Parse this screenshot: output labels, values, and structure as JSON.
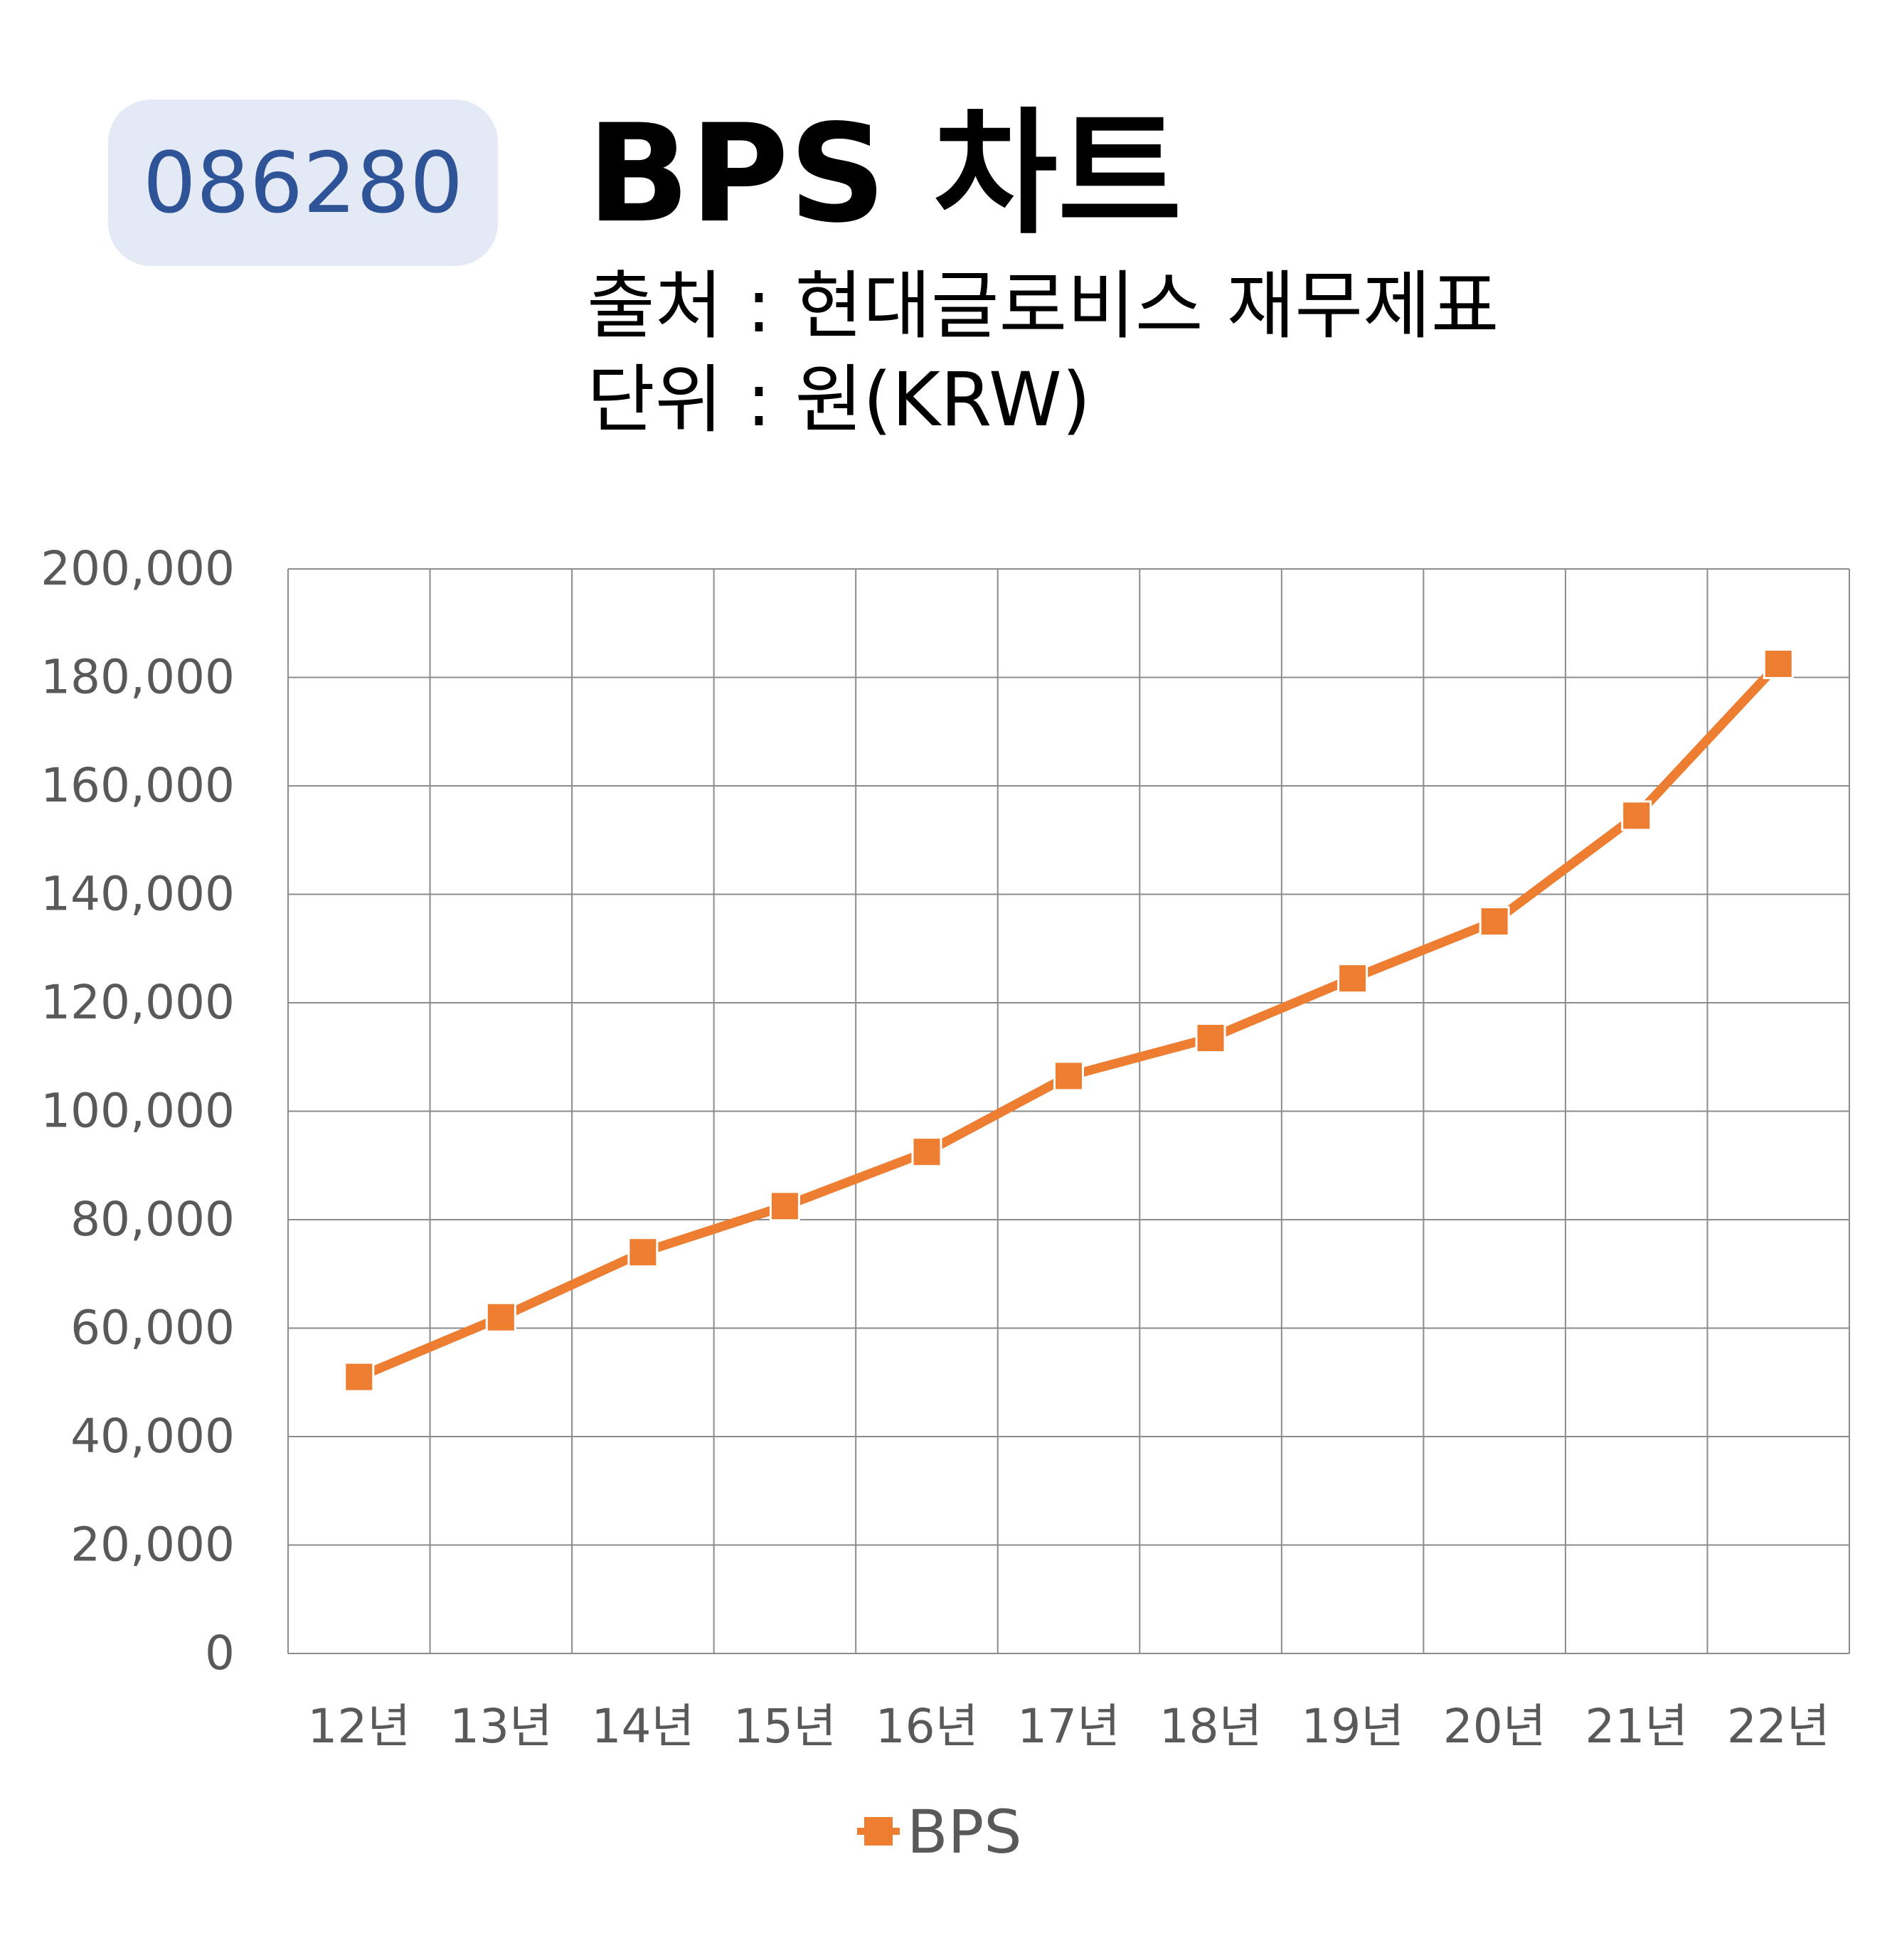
{
  "badge": {
    "code": "086280"
  },
  "header": {
    "title": "BPS 차트",
    "source_line": "출처 : 현대글로비스 재무제표",
    "unit_line": "단위 : 원(KRW)"
  },
  "colors": {
    "series": "#ed7d31",
    "badge_bg": "#e3e9f5",
    "badge_text": "#2e5396",
    "grid": "#8c8c8c"
  },
  "chart_data": {
    "type": "line",
    "categories": [
      "12년",
      "13년",
      "14년",
      "15년",
      "16년",
      "17년",
      "18년",
      "19년",
      "20년",
      "21년",
      "22년"
    ],
    "series": [
      {
        "name": "BPS",
        "values": [
          51000,
          62000,
          74000,
          82500,
          92500,
          106500,
          113500,
          124500,
          135000,
          154500,
          182500
        ]
      }
    ],
    "ylim": [
      0,
      200000
    ],
    "yticks": [
      0,
      20000,
      40000,
      60000,
      80000,
      100000,
      120000,
      140000,
      160000,
      180000,
      200000
    ],
    "ytick_labels": [
      "0",
      "20,000",
      "40,000",
      "60,000",
      "80,000",
      "100,000",
      "120,000",
      "140,000",
      "160,000",
      "180,000",
      "200,000"
    ],
    "grid": true,
    "legend": {
      "position": "bottom",
      "entries": [
        "BPS"
      ]
    },
    "marker": "square"
  }
}
